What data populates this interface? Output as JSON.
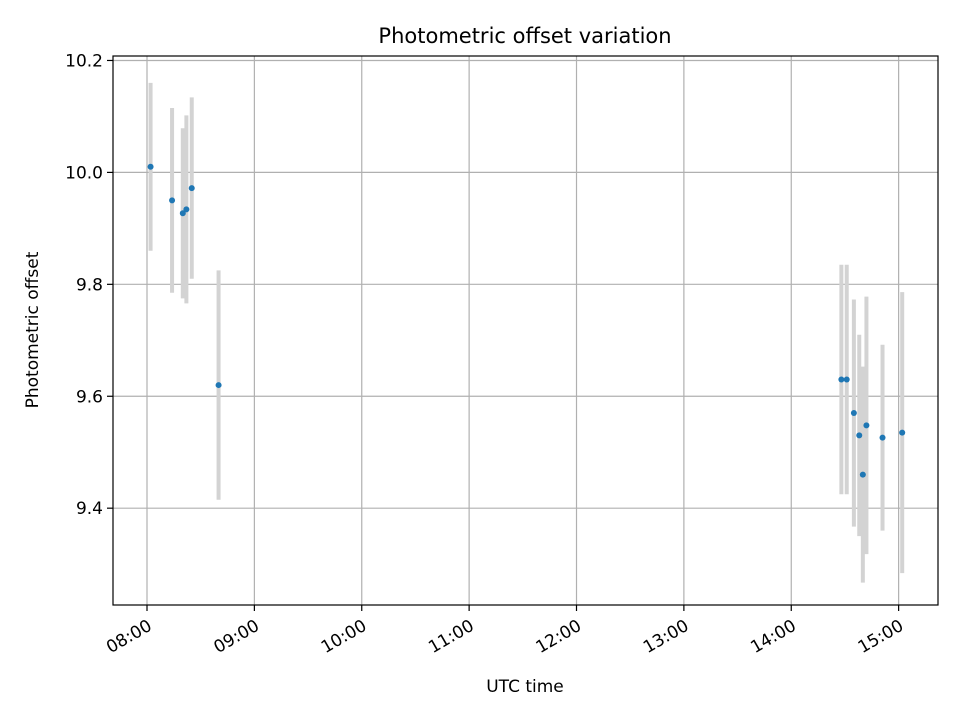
{
  "chart_data": {
    "type": "scatter",
    "title": "Photometric offset variation",
    "xlabel": "UTC time",
    "ylabel": "Photometric offset",
    "grid": true,
    "x_ticks": [
      "08:00",
      "09:00",
      "10:00",
      "11:00",
      "12:00",
      "13:00",
      "14:00",
      "15:00"
    ],
    "y_ticks": [
      9.4,
      9.6,
      9.8,
      10.0,
      10.2
    ],
    "xlim": [
      "07:41",
      "15:22"
    ],
    "ylim": [
      9.227,
      10.208
    ],
    "colors": {
      "points": "#1f77b4",
      "errorbars": "#d3d3d3",
      "grid": "#b0b0b0"
    },
    "points": [
      {
        "time": "08:02",
        "y": 10.01,
        "err": 0.15
      },
      {
        "time": "08:14",
        "y": 9.95,
        "err": 0.165
      },
      {
        "time": "08:20",
        "y": 9.927,
        "err": 0.152
      },
      {
        "time": "08:22",
        "y": 9.934,
        "err": 0.168
      },
      {
        "time": "08:25",
        "y": 9.972,
        "err": 0.162
      },
      {
        "time": "08:40",
        "y": 9.62,
        "err": 0.205
      },
      {
        "time": "14:28",
        "y": 9.63,
        "err": 0.205
      },
      {
        "time": "14:31",
        "y": 9.63,
        "err": 0.205
      },
      {
        "time": "14:35",
        "y": 9.57,
        "err": 0.203
      },
      {
        "time": "14:38",
        "y": 9.53,
        "err": 0.18
      },
      {
        "time": "14:40",
        "y": 9.46,
        "err": 0.193
      },
      {
        "time": "14:42",
        "y": 9.548,
        "err": 0.23
      },
      {
        "time": "14:51",
        "y": 9.526,
        "err": 0.166
      },
      {
        "time": "15:02",
        "y": 9.535,
        "err": 0.251
      }
    ]
  }
}
